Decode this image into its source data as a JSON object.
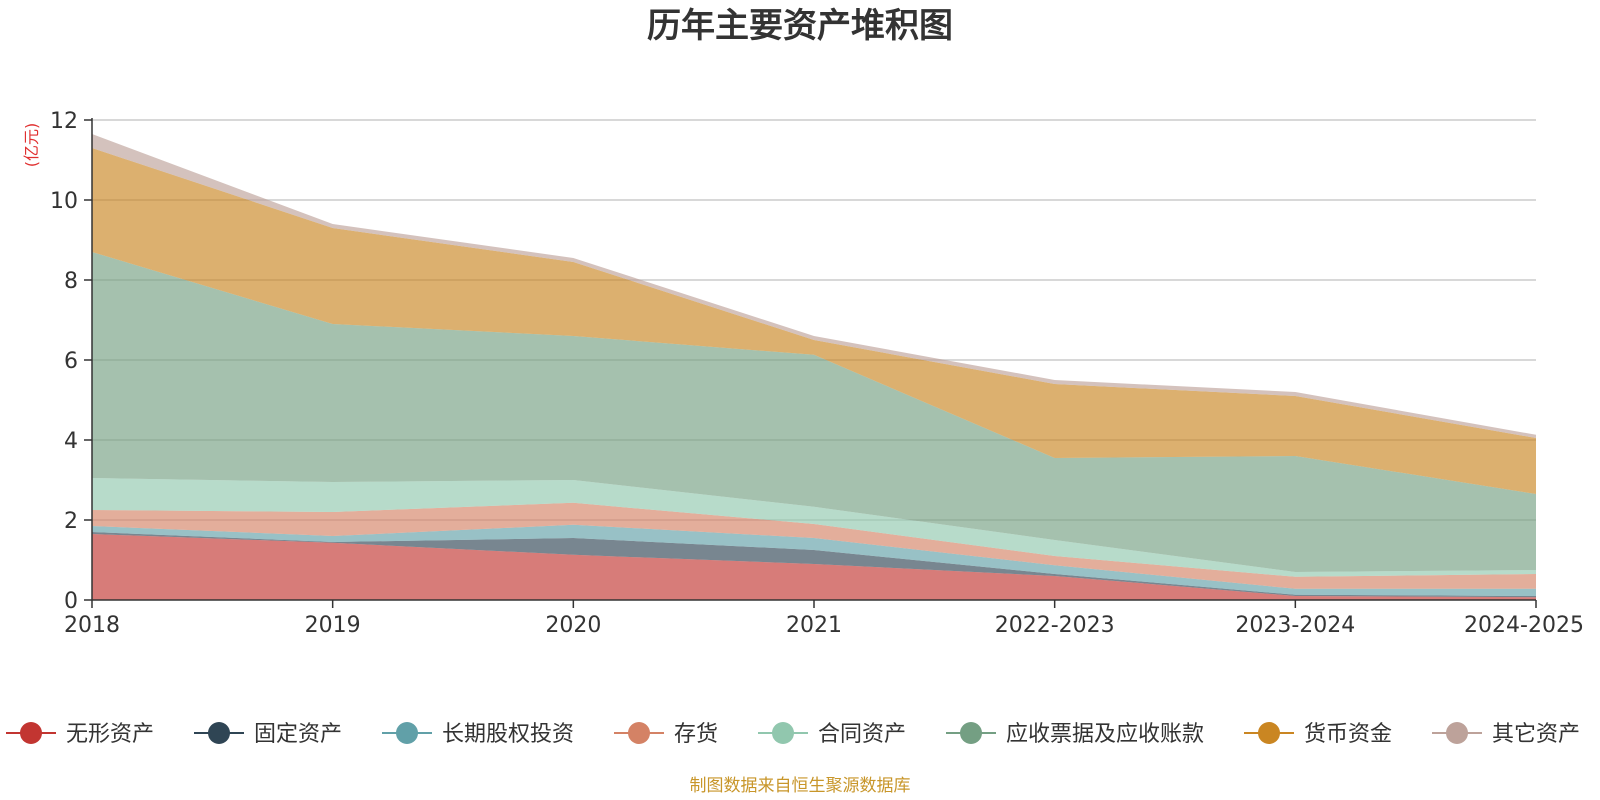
{
  "chart_data": {
    "type": "area",
    "stacked": true,
    "title": "历年主要资产堆积图",
    "unit_label": "(亿元)",
    "x": [
      "2018",
      "2019",
      "2020",
      "2021",
      "2022-2023",
      "2023-2024",
      "2024-2025"
    ],
    "ylim": [
      0,
      12
    ],
    "yticks": [
      "0",
      "2",
      "4",
      "6",
      "8",
      "10",
      "12"
    ],
    "grid": true,
    "legend_position": "bottom",
    "series": [
      {
        "name": "无形资产",
        "color": "#c23531",
        "values": [
          1.65,
          1.43,
          1.13,
          0.9,
          0.6,
          0.1,
          0.07
        ]
      },
      {
        "name": "固定资产",
        "color": "#2f4554",
        "values": [
          0.05,
          0.02,
          0.42,
          0.35,
          0.05,
          0.03,
          0.03
        ]
      },
      {
        "name": "长期股权投资",
        "color": "#61a0a8",
        "values": [
          0.15,
          0.15,
          0.33,
          0.3,
          0.22,
          0.15,
          0.18
        ]
      },
      {
        "name": "存货",
        "color": "#d48265",
        "values": [
          0.4,
          0.6,
          0.55,
          0.35,
          0.23,
          0.3,
          0.37
        ]
      },
      {
        "name": "合同资产",
        "color": "#91c7ae",
        "values": [
          0.8,
          0.75,
          0.57,
          0.43,
          0.4,
          0.12,
          0.1
        ]
      },
      {
        "name": "应收票据及应收账款",
        "color": "#749f83",
        "values": [
          5.65,
          3.95,
          3.6,
          3.8,
          2.05,
          2.9,
          1.9
        ]
      },
      {
        "name": "货币资金",
        "color": "#ca8622",
        "values": [
          2.6,
          2.4,
          1.85,
          0.37,
          1.85,
          1.5,
          1.4
        ]
      },
      {
        "name": "其它资产",
        "color": "#bda29a",
        "values": [
          0.35,
          0.1,
          0.1,
          0.1,
          0.1,
          0.1,
          0.08
        ]
      }
    ]
  },
  "footer": {
    "source": "制图数据来自恒生聚源数据库"
  }
}
